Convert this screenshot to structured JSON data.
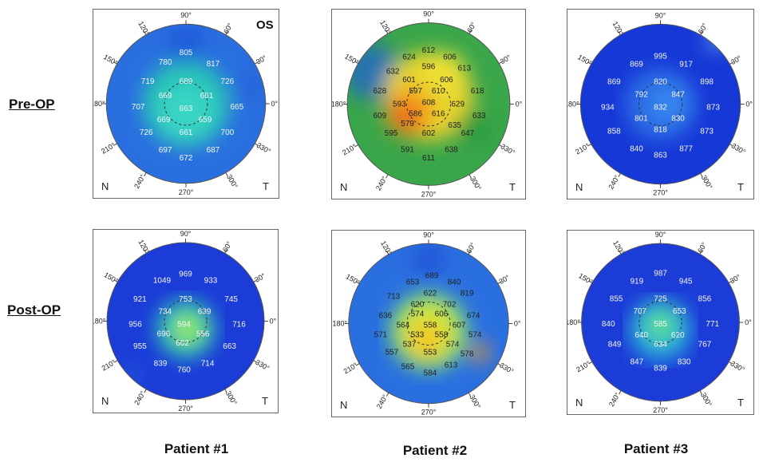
{
  "row_labels": [
    "Pre-OP",
    "Post-OP"
  ],
  "column_labels": [
    "Patient #1",
    "Patient #2",
    "Patient #3"
  ],
  "eye_label": "OS",
  "axis_letters": {
    "nasal": "N",
    "temporal": "T"
  },
  "degree_ticks": [
    "90°",
    "60°",
    "30°",
    "0°",
    "330°",
    "300°",
    "270°",
    "240°",
    "210°",
    "180°",
    "150°",
    "120°"
  ],
  "maps": [
    {
      "id": "pre-p1",
      "palette": "cool",
      "values": [
        {
          "v": "805",
          "x": 0.5,
          "y": 0.18
        },
        {
          "v": "780",
          "x": 0.37,
          "y": 0.24
        },
        {
          "v": "817",
          "x": 0.67,
          "y": 0.25
        },
        {
          "v": "719",
          "x": 0.26,
          "y": 0.36
        },
        {
          "v": "689",
          "x": 0.5,
          "y": 0.36
        },
        {
          "v": "726",
          "x": 0.76,
          "y": 0.36
        },
        {
          "v": "669",
          "x": 0.37,
          "y": 0.45
        },
        {
          "v": "661",
          "x": 0.63,
          "y": 0.45
        },
        {
          "v": "707",
          "x": 0.2,
          "y": 0.52
        },
        {
          "v": "663",
          "x": 0.5,
          "y": 0.53
        },
        {
          "v": "665",
          "x": 0.82,
          "y": 0.52
        },
        {
          "v": "669",
          "x": 0.36,
          "y": 0.6
        },
        {
          "v": "659",
          "x": 0.62,
          "y": 0.6
        },
        {
          "v": "726",
          "x": 0.25,
          "y": 0.68
        },
        {
          "v": "661",
          "x": 0.5,
          "y": 0.68
        },
        {
          "v": "700",
          "x": 0.76,
          "y": 0.68
        },
        {
          "v": "697",
          "x": 0.37,
          "y": 0.79
        },
        {
          "v": "687",
          "x": 0.67,
          "y": 0.79
        },
        {
          "v": "672",
          "x": 0.5,
          "y": 0.84
        }
      ]
    },
    {
      "id": "pre-p2",
      "palette": "warm",
      "values": [
        {
          "v": "612",
          "x": 0.5,
          "y": 0.17
        },
        {
          "v": "624",
          "x": 0.38,
          "y": 0.21
        },
        {
          "v": "606",
          "x": 0.63,
          "y": 0.21
        },
        {
          "v": "632",
          "x": 0.28,
          "y": 0.3
        },
        {
          "v": "596",
          "x": 0.5,
          "y": 0.27
        },
        {
          "v": "613",
          "x": 0.72,
          "y": 0.28
        },
        {
          "v": "601",
          "x": 0.38,
          "y": 0.35
        },
        {
          "v": "606",
          "x": 0.61,
          "y": 0.35
        },
        {
          "v": "628",
          "x": 0.2,
          "y": 0.42
        },
        {
          "v": "597",
          "x": 0.42,
          "y": 0.42
        },
        {
          "v": "610",
          "x": 0.56,
          "y": 0.42
        },
        {
          "v": "618",
          "x": 0.8,
          "y": 0.42
        },
        {
          "v": "593",
          "x": 0.32,
          "y": 0.5
        },
        {
          "v": "608",
          "x": 0.5,
          "y": 0.49
        },
        {
          "v": "629",
          "x": 0.68,
          "y": 0.5
        },
        {
          "v": "609",
          "x": 0.2,
          "y": 0.57
        },
        {
          "v": "586",
          "x": 0.42,
          "y": 0.56
        },
        {
          "v": "616",
          "x": 0.56,
          "y": 0.56
        },
        {
          "v": "633",
          "x": 0.81,
          "y": 0.57
        },
        {
          "v": "579",
          "x": 0.37,
          "y": 0.62
        },
        {
          "v": "635",
          "x": 0.66,
          "y": 0.63
        },
        {
          "v": "595",
          "x": 0.27,
          "y": 0.68
        },
        {
          "v": "602",
          "x": 0.5,
          "y": 0.68
        },
        {
          "v": "647",
          "x": 0.74,
          "y": 0.68
        },
        {
          "v": "591",
          "x": 0.37,
          "y": 0.78
        },
        {
          "v": "638",
          "x": 0.64,
          "y": 0.78
        },
        {
          "v": "611",
          "x": 0.5,
          "y": 0.83
        }
      ]
    },
    {
      "id": "pre-p3",
      "palette": "deep",
      "values": [
        {
          "v": "995",
          "x": 0.5,
          "y": 0.2
        },
        {
          "v": "869",
          "x": 0.35,
          "y": 0.25
        },
        {
          "v": "917",
          "x": 0.66,
          "y": 0.25
        },
        {
          "v": "869",
          "x": 0.21,
          "y": 0.36
        },
        {
          "v": "820",
          "x": 0.5,
          "y": 0.36
        },
        {
          "v": "898",
          "x": 0.79,
          "y": 0.36
        },
        {
          "v": "792",
          "x": 0.38,
          "y": 0.44
        },
        {
          "v": "847",
          "x": 0.61,
          "y": 0.44
        },
        {
          "v": "934",
          "x": 0.17,
          "y": 0.52
        },
        {
          "v": "832",
          "x": 0.5,
          "y": 0.52
        },
        {
          "v": "873",
          "x": 0.83,
          "y": 0.52
        },
        {
          "v": "801",
          "x": 0.38,
          "y": 0.59
        },
        {
          "v": "830",
          "x": 0.61,
          "y": 0.59
        },
        {
          "v": "858",
          "x": 0.21,
          "y": 0.67
        },
        {
          "v": "818",
          "x": 0.5,
          "y": 0.66
        },
        {
          "v": "873",
          "x": 0.79,
          "y": 0.67
        },
        {
          "v": "840",
          "x": 0.35,
          "y": 0.78
        },
        {
          "v": "877",
          "x": 0.66,
          "y": 0.78
        },
        {
          "v": "863",
          "x": 0.5,
          "y": 0.82
        }
      ]
    },
    {
      "id": "post-p1",
      "palette": "ring",
      "values": [
        {
          "v": "969",
          "x": 0.5,
          "y": 0.2
        },
        {
          "v": "1049",
          "x": 0.35,
          "y": 0.24
        },
        {
          "v": "933",
          "x": 0.66,
          "y": 0.24
        },
        {
          "v": "921",
          "x": 0.21,
          "y": 0.36
        },
        {
          "v": "753",
          "x": 0.5,
          "y": 0.36
        },
        {
          "v": "745",
          "x": 0.79,
          "y": 0.36
        },
        {
          "v": "734",
          "x": 0.37,
          "y": 0.44
        },
        {
          "v": "639",
          "x": 0.62,
          "y": 0.44
        },
        {
          "v": "956",
          "x": 0.18,
          "y": 0.52
        },
        {
          "v": "594",
          "x": 0.49,
          "y": 0.52
        },
        {
          "v": "716",
          "x": 0.84,
          "y": 0.52
        },
        {
          "v": "696",
          "x": 0.36,
          "y": 0.58
        },
        {
          "v": "556",
          "x": 0.61,
          "y": 0.58
        },
        {
          "v": "602",
          "x": 0.48,
          "y": 0.64
        },
        {
          "v": "955",
          "x": 0.21,
          "y": 0.66
        },
        {
          "v": "663",
          "x": 0.78,
          "y": 0.66
        },
        {
          "v": "839",
          "x": 0.34,
          "y": 0.77
        },
        {
          "v": "714",
          "x": 0.64,
          "y": 0.77
        },
        {
          "v": "760",
          "x": 0.49,
          "y": 0.81
        }
      ]
    },
    {
      "id": "post-p2",
      "palette": "warm2",
      "values": [
        {
          "v": "689",
          "x": 0.52,
          "y": 0.2
        },
        {
          "v": "653",
          "x": 0.4,
          "y": 0.24
        },
        {
          "v": "840",
          "x": 0.66,
          "y": 0.24
        },
        {
          "v": "713",
          "x": 0.28,
          "y": 0.33
        },
        {
          "v": "622",
          "x": 0.51,
          "y": 0.31
        },
        {
          "v": "819",
          "x": 0.74,
          "y": 0.31
        },
        {
          "v": "620",
          "x": 0.43,
          "y": 0.38
        },
        {
          "v": "702",
          "x": 0.63,
          "y": 0.38
        },
        {
          "v": "636",
          "x": 0.23,
          "y": 0.45
        },
        {
          "v": "574",
          "x": 0.43,
          "y": 0.44
        },
        {
          "v": "606",
          "x": 0.58,
          "y": 0.44
        },
        {
          "v": "674",
          "x": 0.78,
          "y": 0.45
        },
        {
          "v": "564",
          "x": 0.34,
          "y": 0.51
        },
        {
          "v": "558",
          "x": 0.51,
          "y": 0.51
        },
        {
          "v": "607",
          "x": 0.69,
          "y": 0.51
        },
        {
          "v": "571",
          "x": 0.2,
          "y": 0.57
        },
        {
          "v": "533",
          "x": 0.43,
          "y": 0.57
        },
        {
          "v": "558",
          "x": 0.58,
          "y": 0.57
        },
        {
          "v": "574",
          "x": 0.79,
          "y": 0.57
        },
        {
          "v": "537",
          "x": 0.38,
          "y": 0.63
        },
        {
          "v": "574",
          "x": 0.65,
          "y": 0.63
        },
        {
          "v": "557",
          "x": 0.27,
          "y": 0.68
        },
        {
          "v": "553",
          "x": 0.51,
          "y": 0.68
        },
        {
          "v": "578",
          "x": 0.74,
          "y": 0.69
        },
        {
          "v": "565",
          "x": 0.37,
          "y": 0.77
        },
        {
          "v": "613",
          "x": 0.64,
          "y": 0.76
        },
        {
          "v": "584",
          "x": 0.51,
          "y": 0.81
        }
      ]
    },
    {
      "id": "post-p3",
      "palette": "ring2",
      "values": [
        {
          "v": "987",
          "x": 0.5,
          "y": 0.19
        },
        {
          "v": "919",
          "x": 0.35,
          "y": 0.24
        },
        {
          "v": "945",
          "x": 0.66,
          "y": 0.24
        },
        {
          "v": "855",
          "x": 0.22,
          "y": 0.35
        },
        {
          "v": "725",
          "x": 0.5,
          "y": 0.35
        },
        {
          "v": "856",
          "x": 0.78,
          "y": 0.35
        },
        {
          "v": "707",
          "x": 0.37,
          "y": 0.43
        },
        {
          "v": "653",
          "x": 0.62,
          "y": 0.43
        },
        {
          "v": "840",
          "x": 0.17,
          "y": 0.51
        },
        {
          "v": "585",
          "x": 0.5,
          "y": 0.51
        },
        {
          "v": "771",
          "x": 0.83,
          "y": 0.51
        },
        {
          "v": "640",
          "x": 0.38,
          "y": 0.58
        },
        {
          "v": "620",
          "x": 0.61,
          "y": 0.58
        },
        {
          "v": "634",
          "x": 0.5,
          "y": 0.64
        },
        {
          "v": "849",
          "x": 0.21,
          "y": 0.64
        },
        {
          "v": "767",
          "x": 0.78,
          "y": 0.64
        },
        {
          "v": "847",
          "x": 0.35,
          "y": 0.75
        },
        {
          "v": "830",
          "x": 0.65,
          "y": 0.75
        },
        {
          "v": "839",
          "x": 0.5,
          "y": 0.79
        }
      ]
    }
  ]
}
